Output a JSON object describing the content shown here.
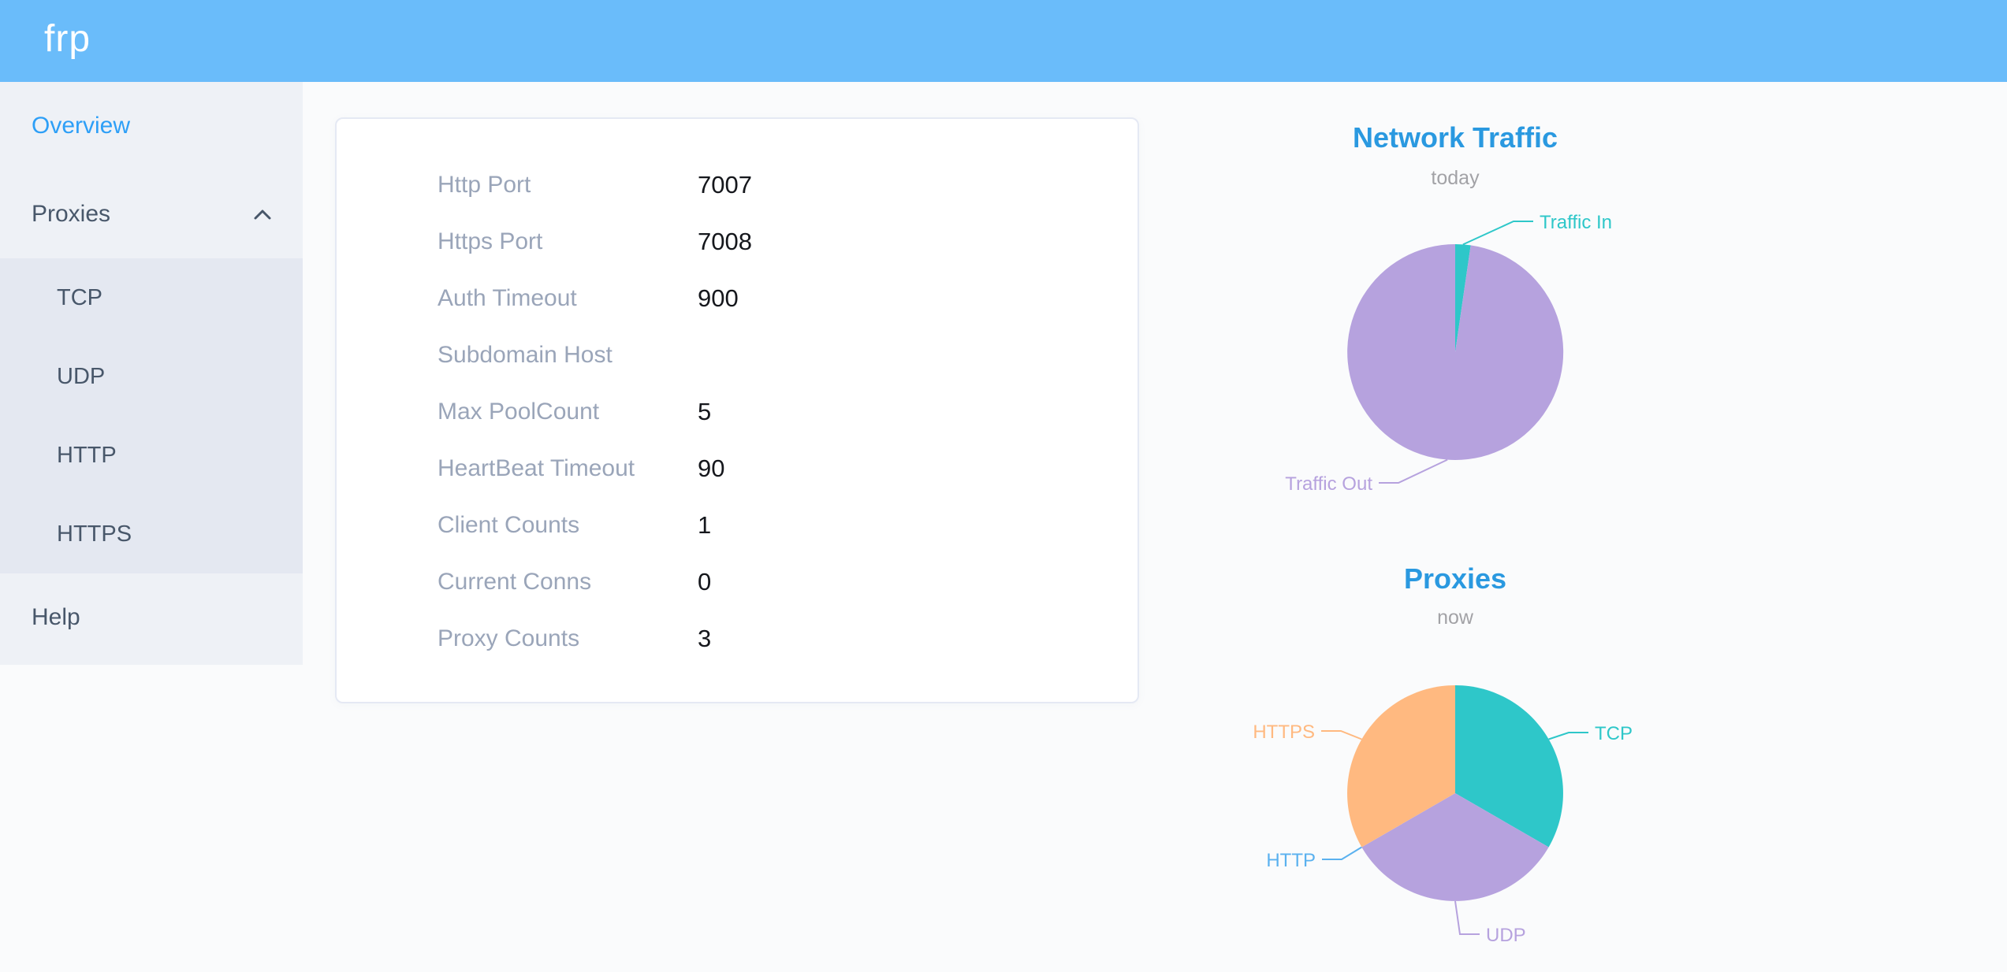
{
  "header": {
    "logo": "frp"
  },
  "sidebar": {
    "items": [
      {
        "id": "overview",
        "label": "Overview",
        "active": true
      },
      {
        "id": "proxies",
        "label": "Proxies",
        "expanded": true,
        "children": [
          {
            "label": "TCP"
          },
          {
            "label": "UDP"
          },
          {
            "label": "HTTP"
          },
          {
            "label": "HTTPS"
          }
        ]
      },
      {
        "id": "help",
        "label": "Help"
      }
    ]
  },
  "server_info": {
    "rows": [
      {
        "label": "Http Port",
        "value": "7007"
      },
      {
        "label": "Https Port",
        "value": "7008"
      },
      {
        "label": "Auth Timeout",
        "value": "900"
      },
      {
        "label": "Subdomain Host",
        "value": ""
      },
      {
        "label": "Max PoolCount",
        "value": "5"
      },
      {
        "label": "HeartBeat Timeout",
        "value": "90"
      },
      {
        "label": "Client Counts",
        "value": "1"
      },
      {
        "label": "Current Conns",
        "value": "0"
      },
      {
        "label": "Proxy Counts",
        "value": "3"
      }
    ]
  },
  "chart_data": [
    {
      "type": "pie",
      "title": "Network Traffic",
      "subtitle": "today",
      "legend_position": "outside-labels",
      "slices": [
        {
          "name": "Traffic In",
          "percent": 2.3,
          "color": "#2ec7c9"
        },
        {
          "name": "Traffic Out",
          "percent": 97.7,
          "color": "#b6a2de"
        }
      ]
    },
    {
      "type": "pie",
      "title": "Proxies",
      "subtitle": "now",
      "legend_position": "outside-labels",
      "slices": [
        {
          "name": "TCP",
          "value": 1,
          "percent": 33.3,
          "color": "#2ec7c9"
        },
        {
          "name": "UDP",
          "value": 1,
          "percent": 33.3,
          "color": "#b6a2de"
        },
        {
          "name": "HTTP",
          "value": 0,
          "percent": 0,
          "color": "#5ab1ef"
        },
        {
          "name": "HTTPS",
          "value": 1,
          "percent": 33.3,
          "color": "#ffb980"
        }
      ]
    }
  ],
  "colors": {
    "header_bg": "#6abcfa",
    "sidebar_bg": "#eef1f6",
    "submenu_bg": "#e4e8f1",
    "menu_text": "#48576a",
    "menu_active": "#2d9ff7",
    "chart_title": "#2a99e0",
    "label_gray": "#9aa5b9"
  }
}
